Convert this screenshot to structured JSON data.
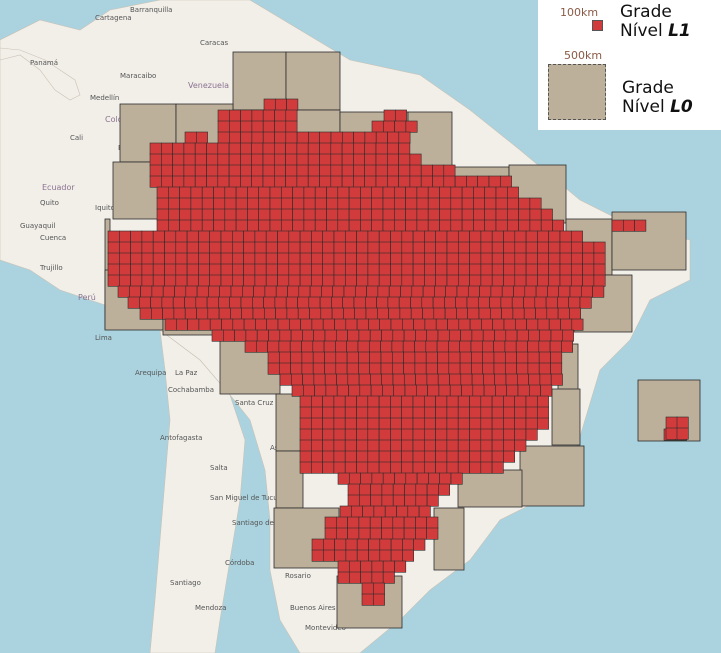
{
  "legend": {
    "l1_scale": "100km",
    "l1_line1": "Grade",
    "l1_line2": "Nível ",
    "l1_level": "L1",
    "l0_scale": "500km",
    "l0_line1": "Grade",
    "l0_line2": "Nível ",
    "l0_level": "L0"
  },
  "map_labels": {
    "countries": [
      "Venezuela",
      "Colombia",
      "Ecuador",
      "Perú"
    ],
    "cities": [
      "Cartagena",
      "Barranquilla",
      "Panamá",
      "Medellín",
      "Bogotá",
      "Caracas",
      "Maracaibo",
      "Cali",
      "Quito",
      "Guayaquil",
      "Cuenca",
      "Iquitos",
      "Trujillo",
      "Lima",
      "Arequipa",
      "Cochabamba",
      "La Paz",
      "Antofagasta",
      "San Miguel de Tucumán",
      "Santiago del Estero",
      "Córdoba",
      "Santiago",
      "Mendoza",
      "Rosario",
      "Buenos Aires",
      "Montevideo",
      "Asunción",
      "Santa Cruz de la Sierra",
      "Salta"
    ]
  },
  "colors": {
    "sea": "#aad3df",
    "land": "#f2efe9",
    "level1_fill": "#d23b3b",
    "level0_fill": "#bdb09a",
    "cell_stroke": "#2b2b2b"
  }
}
